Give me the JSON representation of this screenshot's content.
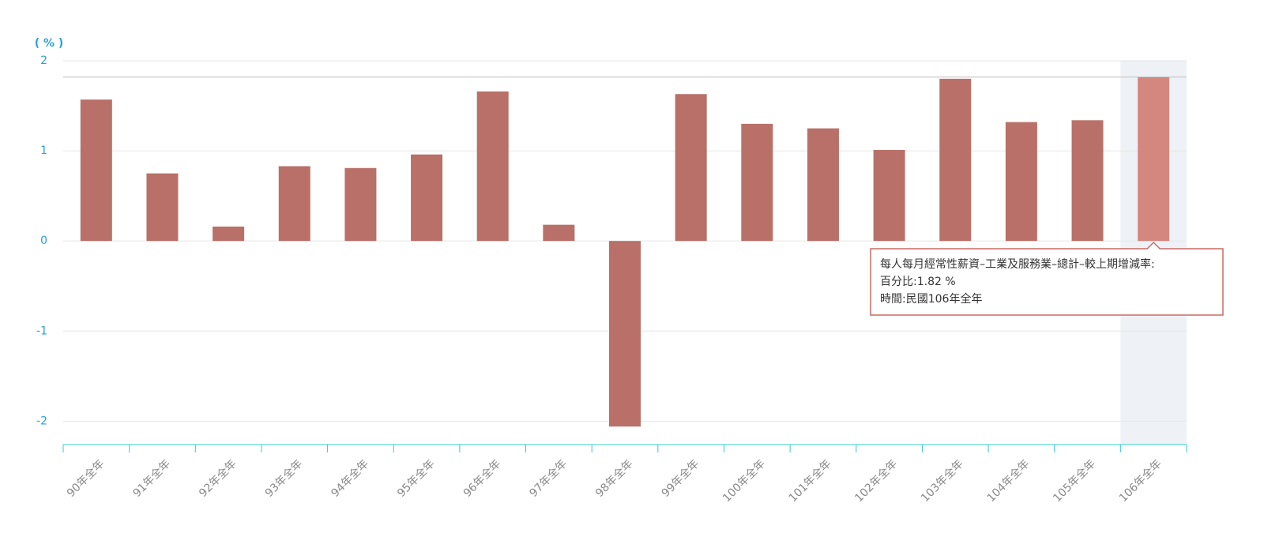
{
  "chart_data": {
    "type": "bar",
    "y_label": "( % )",
    "categories": [
      "90年全年",
      "91年全年",
      "92年全年",
      "93年全年",
      "94年全年",
      "95年全年",
      "96年全年",
      "97年全年",
      "98年全年",
      "99年全年",
      "100年全年",
      "101年全年",
      "102年全年",
      "103年全年",
      "104年全年",
      "105年全年",
      "106年全年"
    ],
    "values": [
      1.57,
      0.75,
      0.16,
      0.83,
      0.81,
      0.96,
      1.66,
      0.18,
      -2.06,
      1.63,
      1.3,
      1.25,
      1.01,
      1.8,
      1.32,
      1.34,
      1.82
    ],
    "color": "#b87068",
    "highlight_color": "#d4877f",
    "ylim": [
      -2.26,
      2
    ],
    "yticks": [
      -2,
      -1,
      0,
      1,
      2
    ],
    "grid": true,
    "tooltip": {
      "index": 16,
      "lines": [
        "每人每月經常性薪資–工業及服務業–總計–較上期增減率:",
        "百分比:1.82 %",
        "時間:民國106年全年"
      ]
    }
  }
}
